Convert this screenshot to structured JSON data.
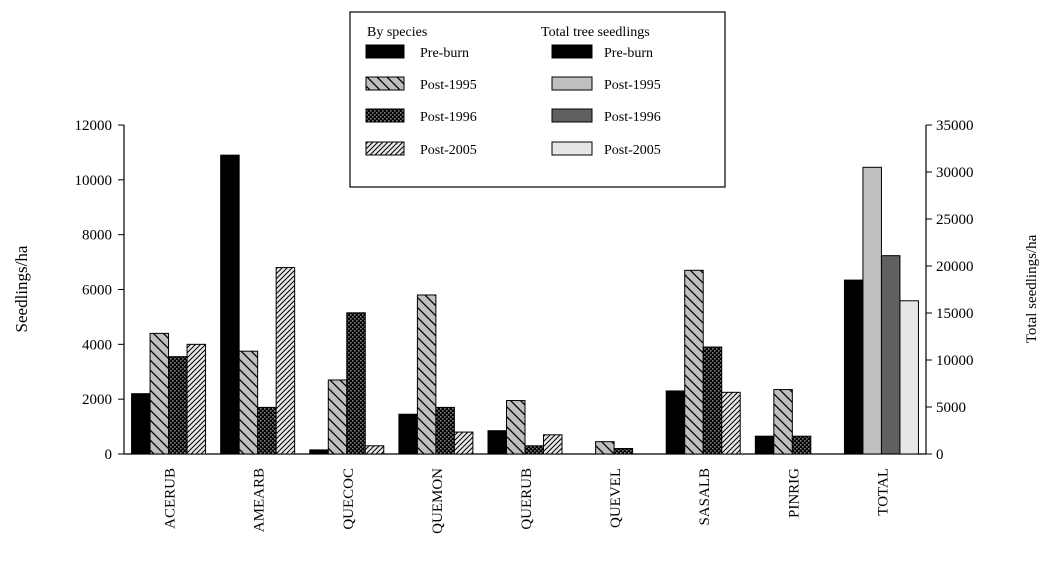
{
  "chart_data": {
    "type": "bar",
    "categories": [
      "ACERUB",
      "AMEARB",
      "QUECOC",
      "QUEMON",
      "QUERUB",
      "QUEVEL",
      "SASALB",
      "PINRIG",
      "TOTAL"
    ],
    "ylabel": "Seedlings/ha",
    "y2label": "Total seedlings/ha",
    "ylim": [
      0,
      12000
    ],
    "y2lim": [
      0,
      35000
    ],
    "yticks": [
      0,
      2000,
      4000,
      6000,
      8000,
      10000,
      12000
    ],
    "y2ticks": [
      0,
      5000,
      10000,
      15000,
      20000,
      25000,
      30000,
      35000
    ],
    "series_by_species": [
      {
        "name": "Pre-burn",
        "color": "#000000",
        "pattern": "solid",
        "values": [
          2200,
          10900,
          150,
          1450,
          850,
          0,
          2300,
          650
        ]
      },
      {
        "name": "Post-1995",
        "color": "#bfbfbf",
        "pattern": "wide-back-diagonal",
        "values": [
          4400,
          3750,
          2700,
          5800,
          1950,
          450,
          6700,
          2350
        ]
      },
      {
        "name": "Post-1996",
        "color": "#7f7f7f",
        "pattern": "dotted-dark",
        "values": [
          3550,
          1700,
          5150,
          1700,
          300,
          200,
          3900,
          650
        ]
      },
      {
        "name": "Post-2005",
        "color": "#d9d9d9",
        "pattern": "narrow-forward-diagonal",
        "values": [
          4000,
          6800,
          300,
          800,
          700,
          0,
          2250,
          0
        ]
      }
    ],
    "series_total": [
      {
        "name": "Pre-burn",
        "color": "#000000",
        "value": 18500
      },
      {
        "name": "Post-1995",
        "color": "#c0c0c0",
        "value": 30500
      },
      {
        "name": "Post-1996",
        "color": "#606060",
        "value": 21100
      },
      {
        "name": "Post-2005",
        "color": "#e6e6e6",
        "value": 16300
      }
    ],
    "legend": {
      "placement": "top-center",
      "by_species_heading": "By species",
      "total_heading": "Total tree seedlings",
      "by_species_labels": [
        "Pre-burn",
        "Post-1995",
        "Post-1996",
        "Post-2005"
      ],
      "total_labels": [
        "Pre-burn",
        "Post-1995",
        "Post-1996",
        "Post-2005"
      ]
    },
    "grid": false
  }
}
